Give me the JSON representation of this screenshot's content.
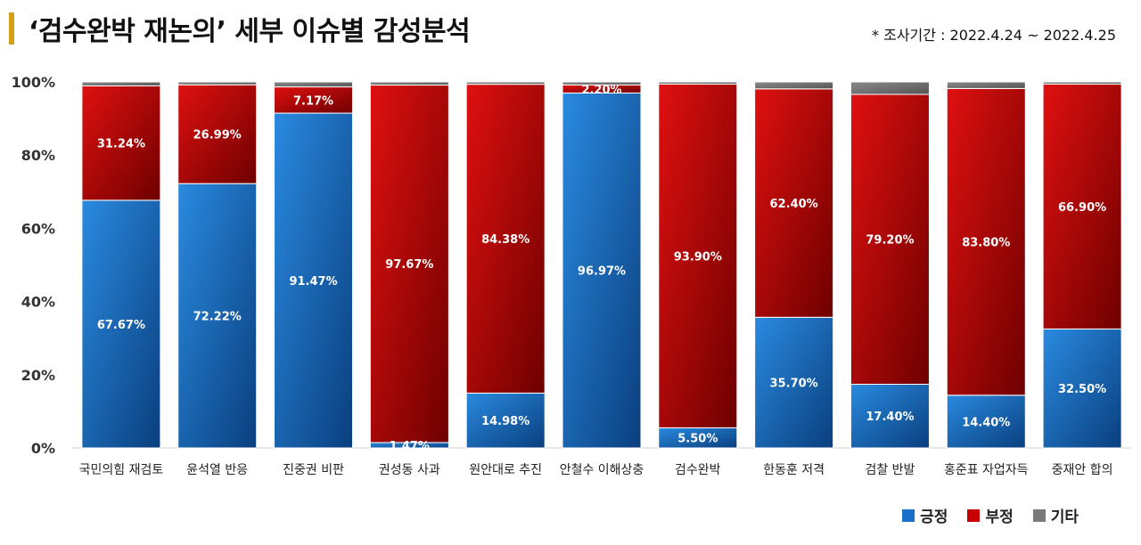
{
  "header": {
    "title": "‘검수완박 재논의’ 세부 이슈별 감성분석",
    "period": "* 조사기간 : 2022.4.24 ~ 2022.4.25"
  },
  "colors": {
    "positive": "#1a72c8",
    "negative": "#c80000",
    "other": "#7a7a7a"
  },
  "chart_data": {
    "type": "bar",
    "stacked": true,
    "title": "‘검수완박 재논의’ 세부 이슈별 감성분석",
    "categories": [
      "국민의힘 재검토",
      "윤석열 반응",
      "진중권 비판",
      "권성동 사과",
      "원안대로 추진",
      "안철수 이해상충",
      "검수완박",
      "한동훈 저격",
      "검찰 반발",
      "홍준표 자업자득",
      "중재안 합의"
    ],
    "series": [
      {
        "name": "긍정",
        "values": [
          67.67,
          72.22,
          91.47,
          1.47,
          14.98,
          96.97,
          5.5,
          35.7,
          17.4,
          14.4,
          32.5
        ],
        "labels": [
          "67.67%",
          "72.22%",
          "91.47%",
          "1.47%",
          "14.98%",
          "96.97%",
          "5.50%",
          "35.70%",
          "17.40%",
          "14.40%",
          "32.50%"
        ]
      },
      {
        "name": "부정",
        "values": [
          31.24,
          26.99,
          7.17,
          97.67,
          84.38,
          2.2,
          93.9,
          62.4,
          79.2,
          83.8,
          66.9
        ],
        "labels": [
          "31.24%",
          "26.99%",
          "7.17%",
          "97.67%",
          "84.38%",
          "2.20%",
          "93.90%",
          "62.40%",
          "79.20%",
          "83.80%",
          "66.90%"
        ]
      },
      {
        "name": "기타",
        "values": [
          1.09,
          0.79,
          1.36,
          0.86,
          0.64,
          0.83,
          0.6,
          1.9,
          3.4,
          1.8,
          0.6
        ],
        "labels": []
      }
    ],
    "yticks": [
      "0%",
      "20%",
      "40%",
      "60%",
      "80%",
      "100%"
    ],
    "ylim": [
      0,
      100
    ],
    "grid": false,
    "legend_position": "bottom-right"
  }
}
